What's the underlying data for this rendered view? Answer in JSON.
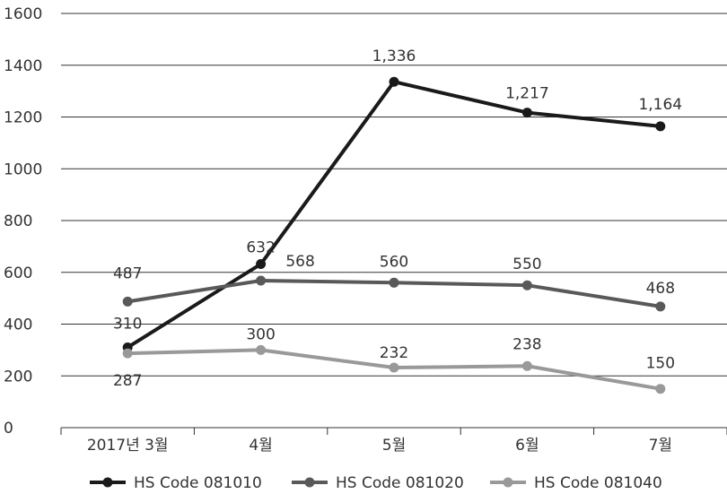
{
  "chart_data": {
    "type": "line",
    "categories": [
      "2017년 3월",
      "4월",
      "5월",
      "6월",
      "7월"
    ],
    "ylim": [
      0,
      1600
    ],
    "yticks": [
      0,
      200,
      400,
      600,
      800,
      1000,
      1200,
      1400,
      1600
    ],
    "grid": true,
    "legend_position": "bottom",
    "series": [
      {
        "name": "HS Code 081010",
        "color": "#1a1a1a",
        "values": [
          310,
          632,
          1336,
          1217,
          1164
        ],
        "labels": [
          "310",
          "632",
          "1,336",
          "1,217",
          "1,164"
        ]
      },
      {
        "name": "HS Code 081020",
        "color": "#595959",
        "values": [
          487,
          568,
          560,
          550,
          468
        ],
        "labels": [
          "487",
          "568",
          "560",
          "550",
          "468"
        ]
      },
      {
        "name": "HS Code 081040",
        "color": "#999999",
        "values": [
          287,
          300,
          232,
          238,
          150
        ],
        "labels": [
          "287",
          "300",
          "232",
          "238",
          "150"
        ]
      }
    ]
  }
}
